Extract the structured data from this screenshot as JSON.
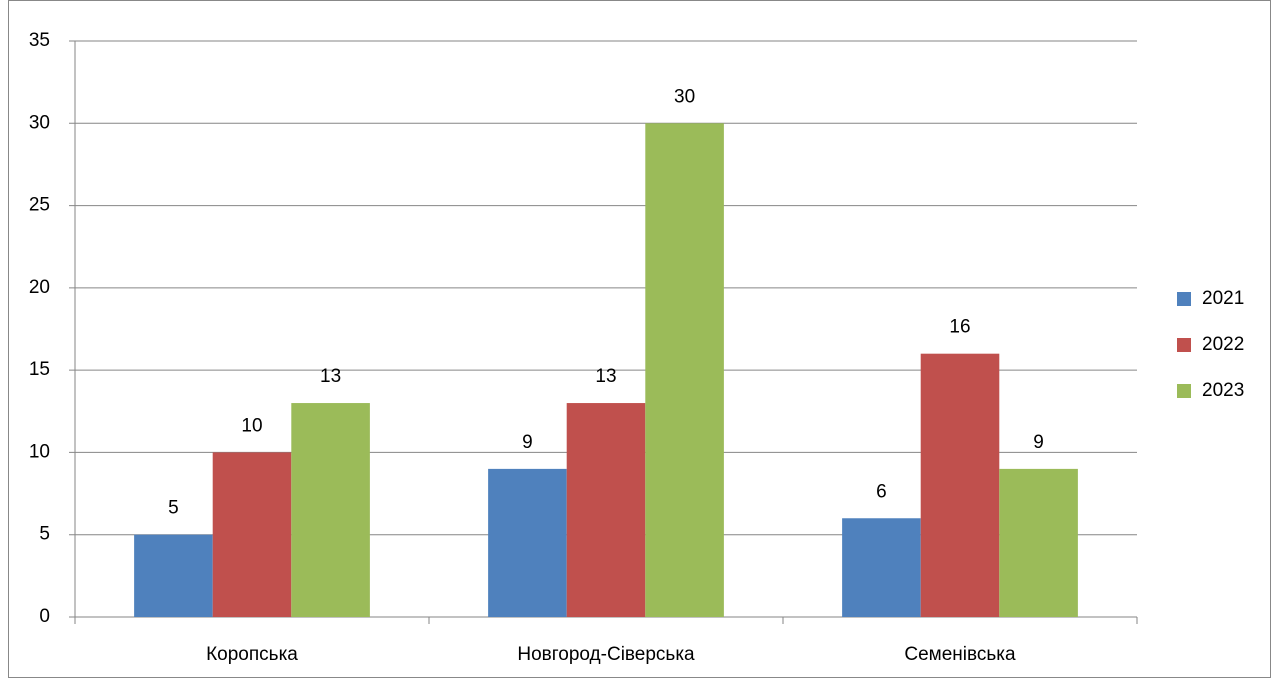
{
  "chart_data": {
    "type": "bar",
    "categories": [
      "Коропська",
      "Новгород-Сіверська",
      "Семенівська"
    ],
    "series": [
      {
        "name": "2021",
        "color": "#4f81bd",
        "values": [
          5,
          9,
          6
        ]
      },
      {
        "name": "2022",
        "color": "#c0504d",
        "values": [
          10,
          13,
          16
        ]
      },
      {
        "name": "2023",
        "color": "#9bbb59",
        "values": [
          13,
          30,
          9
        ]
      }
    ],
    "ylim": [
      0,
      35
    ],
    "yticks": [
      0,
      5,
      10,
      15,
      20,
      25,
      30,
      35
    ],
    "grid": true,
    "legend": "right"
  }
}
